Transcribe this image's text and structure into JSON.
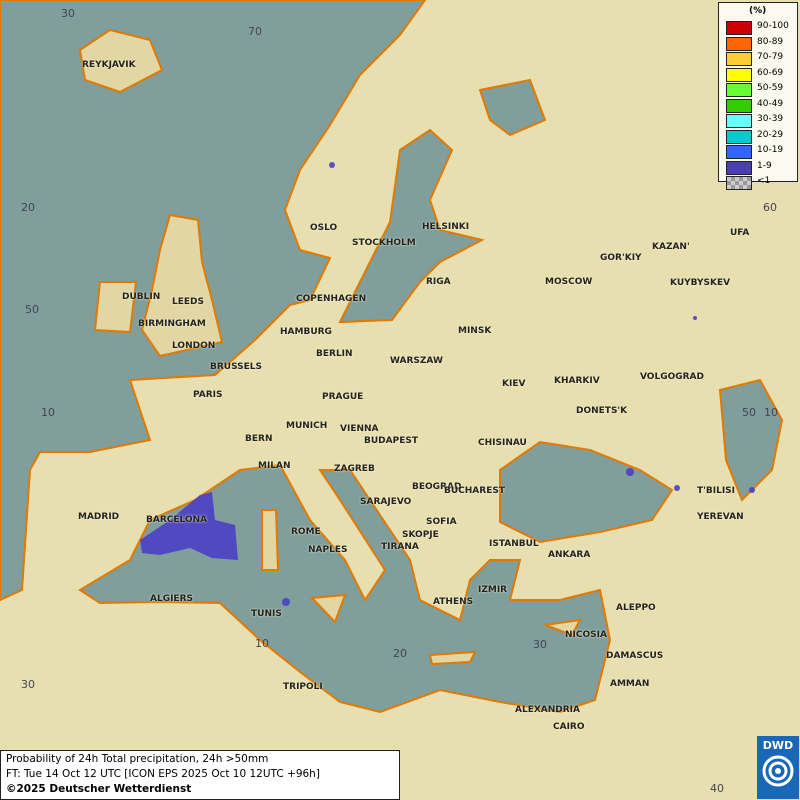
{
  "map": {
    "sea_color": "#7f9e9c",
    "land_color": "#e8dfb0",
    "coast_color": "#e07a00",
    "precip_color": "#4b3fc4",
    "cities": [
      "REYKJAVIK",
      "OSLO",
      "STOCKHOLM",
      "HELSINKI",
      "DUBLIN",
      "LEEDS",
      "BIRMINGHAM",
      "LONDON",
      "COPENHAGEN",
      "HAMBURG",
      "BERLIN",
      "RIGA",
      "MINSK",
      "MOSCOW",
      "GOR'KIY",
      "KAZAN'",
      "UFA",
      "KUYBYSKEV",
      "BRUSSELS",
      "PARIS",
      "PRAGUE",
      "WARSZAW",
      "KIEV",
      "KHARKIV",
      "VOLGOGRAD",
      "MUNICH",
      "VIENNA",
      "BERN",
      "BUDAPEST",
      "DONETS'K",
      "CHISINAU",
      "MILAN",
      "ZAGREB",
      "BEOGRAD",
      "BUCHAREST",
      "T'BILISI",
      "MADRID",
      "BARCELONA",
      "SARAJEVO",
      "SOFIA",
      "YEREVAN",
      "ROME",
      "SKOPJE",
      "ISTANBUL",
      "ANKARA",
      "NAPLES",
      "TIRANA",
      "ALGIERS",
      "IZMIR",
      "ATHENS",
      "TUNIS",
      "ALEPPO",
      "NICOSIA",
      "DAMASCUS",
      "AMMAN",
      "TRIPOLI",
      "ALEXANDRIA",
      "CAIRO"
    ],
    "grid_labels": [
      "30",
      "70",
      "20",
      "60",
      "50",
      "10",
      "50",
      "10",
      "10",
      "20",
      "30",
      "30",
      "40"
    ]
  },
  "legend": {
    "unit": "(%)",
    "items": [
      {
        "label": "90-100",
        "color": "#cc0000"
      },
      {
        "label": "80-89",
        "color": "#ff6600"
      },
      {
        "label": "70-79",
        "color": "#ffcc33"
      },
      {
        "label": "60-69",
        "color": "#ffff00"
      },
      {
        "label": "50-59",
        "color": "#66ff33"
      },
      {
        "label": "40-49",
        "color": "#33cc00"
      },
      {
        "label": "30-39",
        "color": "#66ffff"
      },
      {
        "label": "20-29",
        "color": "#00cccc"
      },
      {
        "label": "10-19",
        "color": "#3366ff"
      },
      {
        "label": "1-9",
        "color": "#4b3fb0"
      },
      {
        "label": "<1",
        "color": "checker"
      }
    ]
  },
  "caption": {
    "line1": "Probability of 24h Total precipitation, 24h >50mm",
    "line2": "FT: Tue 14 Oct 12 UTC [ICON EPS 2025 Oct 10 12UTC +96h]",
    "copyright": "©2025 Deutscher Wetterdienst"
  },
  "logo": {
    "text": "DWD"
  }
}
